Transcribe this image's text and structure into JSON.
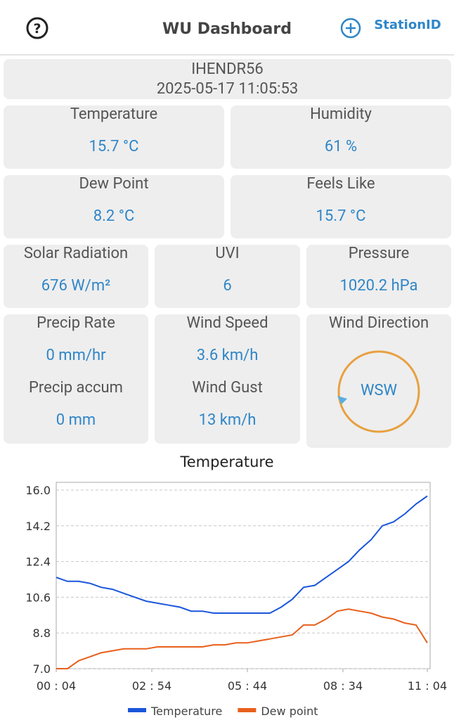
{
  "header": {
    "title": "WU Dashboard",
    "station_button": "StationID"
  },
  "station": {
    "id": "IHENDR56",
    "time": "2025-05-17 11:05:53"
  },
  "cards": {
    "temperature": {
      "label": "Temperature",
      "value": "15.7 °C"
    },
    "humidity": {
      "label": "Humidity",
      "value": "61 %"
    },
    "dew_point": {
      "label": "Dew Point",
      "value": "8.2 °C"
    },
    "feels_like": {
      "label": "Feels Like",
      "value": "15.7 °C"
    },
    "solar_radiation": {
      "label": "Solar Radiation",
      "value": "676 W/m²"
    },
    "uvi": {
      "label": "UVI",
      "value": "6"
    },
    "pressure": {
      "label": "Pressure",
      "value": "1020.2 hPa"
    },
    "precip_rate": {
      "label": "Precip Rate",
      "value": "0 mm/hr"
    },
    "precip_accum": {
      "label": "Precip accum",
      "value": "0 mm"
    },
    "wind_speed": {
      "label": "Wind Speed",
      "value": "3.6 km/h"
    },
    "wind_gust": {
      "label": "Wind Gust",
      "value": "13 km/h"
    },
    "wind_direction": {
      "label": "Wind Direction",
      "value": "WSW"
    }
  },
  "chart_data": {
    "type": "line",
    "title": "Temperature",
    "x": [
      "00 : 04",
      "00 : 24",
      "00 : 44",
      "01 : 04",
      "01 : 24",
      "01 : 44",
      "02 : 04",
      "02 : 24",
      "02 : 44",
      "03 : 04",
      "03 : 24",
      "03 : 44",
      "04 : 04",
      "04 : 24",
      "04 : 44",
      "05 : 04",
      "05 : 24",
      "05 : 44",
      "06 : 04",
      "06 : 24",
      "06 : 44",
      "07 : 04",
      "07 : 24",
      "07 : 44",
      "08 : 04",
      "08 : 24",
      "08 : 44",
      "09 : 04",
      "09 : 24",
      "09 : 44",
      "10 : 04",
      "10 : 24",
      "10 : 44",
      "11 : 04"
    ],
    "series": [
      {
        "name": "Temperature",
        "color": "#1a56db",
        "values": [
          11.6,
          11.4,
          11.4,
          11.3,
          11.1,
          11.0,
          10.8,
          10.6,
          10.4,
          10.3,
          10.2,
          10.1,
          9.9,
          9.9,
          9.8,
          9.8,
          9.8,
          9.8,
          9.8,
          9.8,
          10.1,
          10.5,
          11.1,
          11.2,
          11.6,
          12.0,
          12.4,
          13.0,
          13.5,
          14.2,
          14.4,
          14.8,
          15.3,
          15.7
        ]
      },
      {
        "name": "Dew point",
        "color": "#e8601c",
        "values": [
          7.0,
          7.0,
          7.4,
          7.6,
          7.8,
          7.9,
          8.0,
          8.0,
          8.0,
          8.1,
          8.1,
          8.1,
          8.1,
          8.1,
          8.2,
          8.2,
          8.3,
          8.3,
          8.4,
          8.5,
          8.6,
          8.7,
          9.2,
          9.2,
          9.5,
          9.9,
          10.0,
          9.9,
          9.8,
          9.6,
          9.5,
          9.3,
          9.2,
          8.3
        ]
      }
    ],
    "xlim": [
      "00 : 04",
      "11 : 04"
    ],
    "xticks": [
      "00 : 04",
      "02 : 54",
      "05 : 44",
      "08 : 34",
      "11 : 04"
    ],
    "ylim": [
      7,
      16
    ],
    "yticks": [
      {
        "value": 16,
        "label": "16.0"
      },
      14.2,
      12.4,
      10.6,
      8.8,
      {
        "value": 7,
        "label": "7.0"
      }
    ],
    "grid": true,
    "legend": "bottom"
  }
}
